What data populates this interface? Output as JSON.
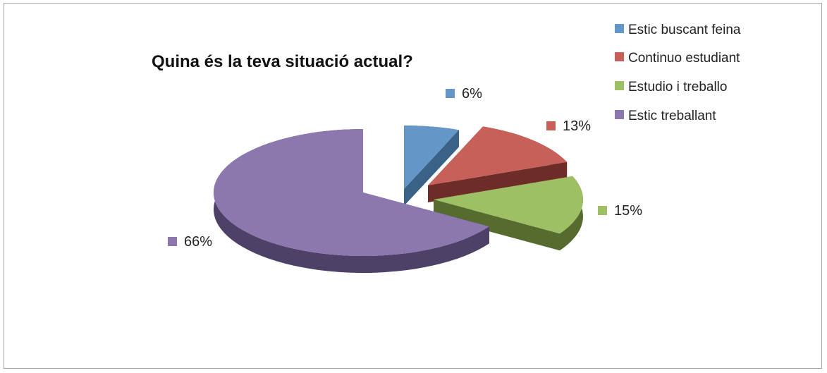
{
  "chart_data": {
    "type": "pie",
    "title": "Quina és la teva situació actual?",
    "categories": [
      "Estic buscant feina",
      "Continuo estudiant",
      "Estudio i treballo",
      "Estic treballant"
    ],
    "values": [
      6,
      13,
      15,
      66
    ],
    "data_labels": [
      "6%",
      "13%",
      "15%",
      "66%"
    ],
    "colors": {
      "top": [
        "#6496c8",
        "#c8605a",
        "#9fbf64",
        "#8c78ae"
      ],
      "side": [
        "#3a6186",
        "#6e2c28",
        "#566b2e",
        "#4e4168"
      ]
    },
    "legend_position": "top-right",
    "style": "3d-exploded"
  }
}
